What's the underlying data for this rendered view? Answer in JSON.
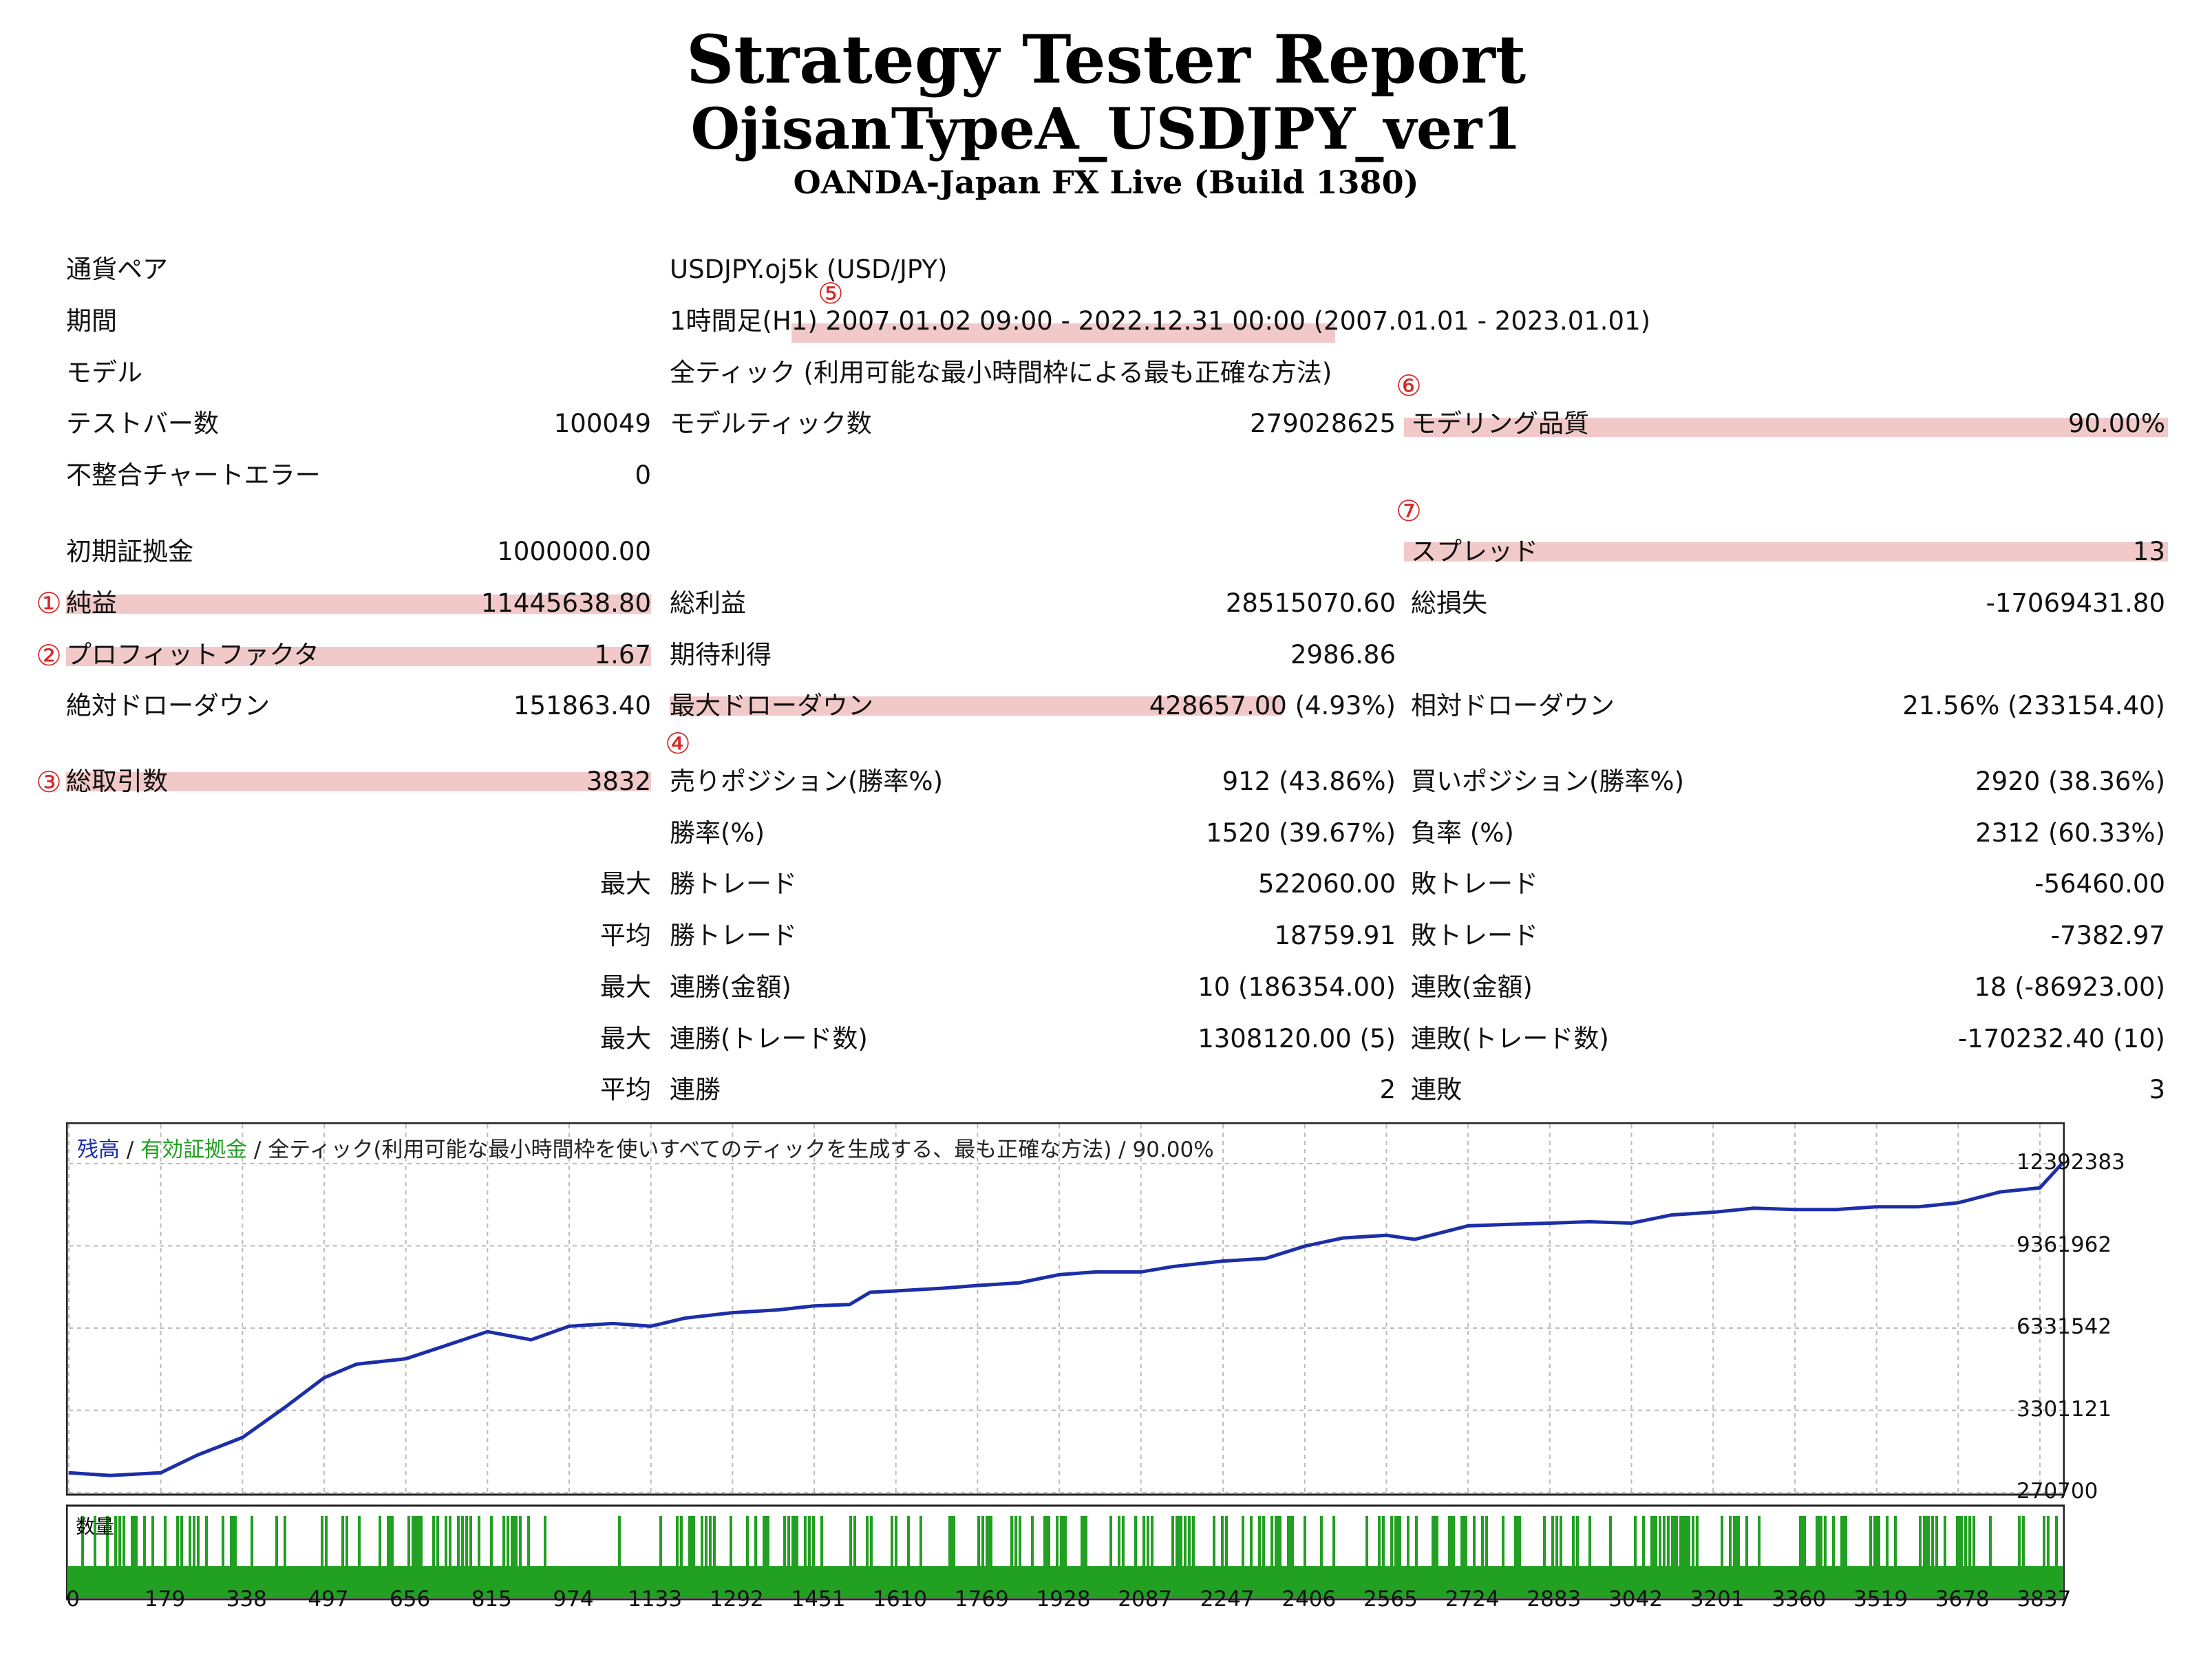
{
  "report": {
    "title": "Strategy Tester Report",
    "ea_name": "OjisanTypeA_USDJPY_ver1",
    "server": "OANDA-Japan FX Live (Build 1380)"
  },
  "rows": {
    "symbol": {
      "label": "通貨ペア",
      "value": "USDJPY.oj5k (USD/JPY)"
    },
    "period": {
      "label": "期間",
      "value": "1時間足(H1) 2007.01.02 09:00 - 2022.12.31 00:00 (2007.01.01 - 2023.01.01)"
    },
    "model": {
      "label": "モデル",
      "value": "全ティック (利用可能な最小時間枠による最も正確な方法)"
    },
    "bars": {
      "label": "テストバー数",
      "value": "100049"
    },
    "ticks": {
      "label": "モデルティック数",
      "value": "279028625"
    },
    "quality": {
      "label": "モデリング品質",
      "value": "90.00%"
    },
    "mismatch": {
      "label": "不整合チャートエラー",
      "value": "0"
    },
    "deposit": {
      "label": "初期証拠金",
      "value": "1000000.00"
    },
    "spread": {
      "label": "スプレッド",
      "value": "13"
    },
    "net_profit": {
      "label": "純益",
      "value": "11445638.80"
    },
    "gross_profit": {
      "label": "総利益",
      "value": "28515070.60"
    },
    "gross_loss": {
      "label": "総損失",
      "value": "-17069431.80"
    },
    "profit_factor": {
      "label": "プロフィットファクタ",
      "value": "1.67"
    },
    "expected_payoff": {
      "label": "期待利得",
      "value": "2986.86"
    },
    "abs_dd": {
      "label": "絶対ドローダウン",
      "value": "151863.40"
    },
    "max_dd": {
      "label": "最大ドローダウン",
      "value": "428657.00 (4.93%)"
    },
    "rel_dd": {
      "label": "相対ドローダウン",
      "value": "21.56% (233154.40)"
    },
    "total_trades": {
      "label": "総取引数",
      "value": "3832"
    },
    "short_pos": {
      "label": "売りポジション(勝率%)",
      "value": "912 (43.86%)"
    },
    "long_pos": {
      "label": "買いポジション(勝率%)",
      "value": "2920 (38.36%)"
    },
    "win_rate": {
      "label": "勝率(%)",
      "value": "1520 (39.67%)"
    },
    "loss_rate": {
      "label": "負率 (%)",
      "value": "2312 (60.33%)"
    },
    "largest_win": {
      "prefix": "最大",
      "label": "勝トレード",
      "value": "522060.00"
    },
    "largest_loss": {
      "label": "敗トレード",
      "value": "-56460.00"
    },
    "avg_win": {
      "prefix": "平均",
      "label": "勝トレード",
      "value": "18759.91"
    },
    "avg_loss": {
      "label": "敗トレード",
      "value": "-7382.97"
    },
    "max_cons_wins": {
      "prefix": "最大",
      "label": "連勝(金額)",
      "value": "10 (186354.00)"
    },
    "max_cons_losses": {
      "label": "連敗(金額)",
      "value": "18 (-86923.00)"
    },
    "max_cons_profit": {
      "prefix": "最大",
      "label": "連勝(トレード数)",
      "value": "1308120.00 (5)"
    },
    "max_cons_loss": {
      "label": "連敗(トレード数)",
      "value": "-170232.40 (10)"
    },
    "avg_cons_wins": {
      "prefix": "平均",
      "label": "連勝",
      "value": "2"
    },
    "avg_cons_losses": {
      "label": "連敗",
      "value": "3"
    }
  },
  "markers": [
    "①",
    "②",
    "③",
    "④",
    "⑤",
    "⑥",
    "⑦"
  ],
  "chart_legend": {
    "balance": "残高",
    "sep1": " / ",
    "equity": "有効証拠金",
    "rest": " / 全ティック(利用可能な最小時間枠を使いすべてのティックを生成する、最も正確な方法) / 90.00%"
  },
  "volume_label": "数量",
  "colors": {
    "balance": "#1c2ea8",
    "volume": "#22a022",
    "highlight": "#f1c9c9",
    "marker": "#d62828"
  },
  "chart_data": {
    "type": "line",
    "series": [
      {
        "name": "残高",
        "x": [
          0,
          80,
          179,
          250,
          338,
          420,
          497,
          560,
          656,
          720,
          815,
          900,
          974,
          1060,
          1133,
          1200,
          1292,
          1380,
          1451,
          1520,
          1560,
          1610,
          1700,
          1769,
          1850,
          1928,
          2000,
          2087,
          2150,
          2247,
          2330,
          2406,
          2480,
          2565,
          2620,
          2724,
          2800,
          2883,
          2960,
          3042,
          3120,
          3201,
          3280,
          3360,
          3440,
          3519,
          3600,
          3678,
          3760,
          3837,
          3880
        ],
        "values": [
          1000000,
          900000,
          1000000,
          1650000,
          2300000,
          3400000,
          4500000,
          5000000,
          5200000,
          5600000,
          6200000,
          5900000,
          6400000,
          6500000,
          6400000,
          6700000,
          6900000,
          7000000,
          7150000,
          7200000,
          7650000,
          7700000,
          7800000,
          7900000,
          8000000,
          8300000,
          8400000,
          8400000,
          8600000,
          8800000,
          8900000,
          9350000,
          9650000,
          9750000,
          9600000,
          10100000,
          10150000,
          10200000,
          10250000,
          10200000,
          10500000,
          10600000,
          10750000,
          10700000,
          10700000,
          10800000,
          10800000,
          10950000,
          11350000,
          11500000,
          12392383
        ]
      }
    ],
    "y_ticks": [
      "12392383",
      "9361962",
      "6331542",
      "3301121",
      "270700"
    ],
    "y_tick_values": [
      12392383,
      9361962,
      6331542,
      3301121,
      270700
    ],
    "x_ticks": [
      "0",
      "179",
      "338",
      "497",
      "656",
      "815",
      "974",
      "1133",
      "1292",
      "1451",
      "1610",
      "1769",
      "1928",
      "2087",
      "2247",
      "2406",
      "2565",
      "2724",
      "2883",
      "3042",
      "3201",
      "3360",
      "3519",
      "3678",
      "3837"
    ],
    "x_range": [
      0,
      3880
    ],
    "y_range": [
      270700,
      12392383
    ],
    "grid": true
  }
}
